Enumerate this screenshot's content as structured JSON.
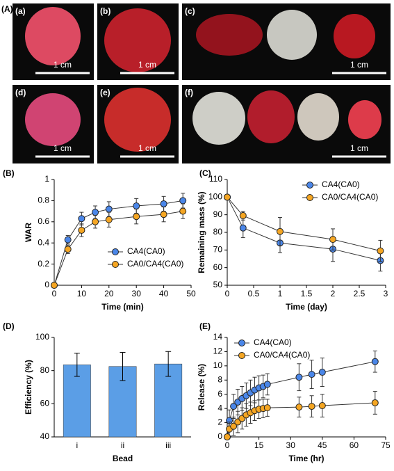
{
  "photos": {
    "label": "(A)",
    "panels": [
      {
        "label": "(a)",
        "scale": "1 cm"
      },
      {
        "label": "(b)",
        "scale": "1 cm"
      },
      {
        "label": "(c)",
        "scale": "1 cm"
      },
      {
        "label": "(d)",
        "scale": "1 cm"
      },
      {
        "label": "(e)",
        "scale": "1 cm"
      },
      {
        "label": "(f)",
        "scale": "1 cm"
      }
    ]
  },
  "chart_data": [
    {
      "type": "line",
      "panel_label": "(B)",
      "x_label": "Time (min)",
      "y_label": "WAR",
      "x": [
        0,
        5,
        10,
        15,
        20,
        30,
        40,
        47
      ],
      "series": [
        {
          "name": "CA4(CA0)",
          "color": "#4a86e8",
          "values": [
            0,
            0.43,
            0.63,
            0.69,
            0.72,
            0.75,
            0.77,
            0.8
          ],
          "errors": [
            0,
            0.04,
            0.06,
            0.06,
            0.07,
            0.07,
            0.07,
            0.07
          ]
        },
        {
          "name": "CA0/CA4(CA0)",
          "color": "#f5a623",
          "values": [
            0,
            0.34,
            0.52,
            0.6,
            0.62,
            0.65,
            0.67,
            0.7
          ],
          "errors": [
            0,
            0.04,
            0.06,
            0.06,
            0.07,
            0.07,
            0.07,
            0.07
          ]
        }
      ],
      "xlim": [
        0,
        50
      ],
      "xticks": [
        0,
        10,
        20,
        30,
        40,
        50
      ],
      "ylim": [
        0,
        1
      ],
      "yticks": [
        0,
        0.2,
        0.4,
        0.6,
        0.8,
        1
      ],
      "legend": "lower right"
    },
    {
      "type": "line",
      "panel_label": "(C)",
      "x_label": "Time (day)",
      "y_label": "Remaining mass (%)",
      "x": [
        0,
        0.3,
        1,
        2,
        2.9
      ],
      "series": [
        {
          "name": "CA4(CA0)",
          "color": "#4a86e8",
          "values": [
            100,
            82.5,
            74,
            70.5,
            64
          ],
          "errors": [
            0,
            5.5,
            5.5,
            7,
            6
          ]
        },
        {
          "name": "CA0/CA4(CA0)",
          "color": "#f5a623",
          "values": [
            100,
            89.5,
            80.5,
            76,
            69.5
          ],
          "errors": [
            0,
            2.5,
            8,
            6,
            6
          ]
        }
      ],
      "xlim": [
        0,
        3
      ],
      "xticks": [
        0,
        0.5,
        1,
        1.5,
        2,
        2.5,
        3
      ],
      "ylim": [
        50,
        110
      ],
      "yticks": [
        50,
        60,
        70,
        80,
        90,
        100,
        110
      ],
      "legend": "upper right"
    },
    {
      "type": "bar",
      "panel_label": "(D)",
      "x_label": "Bead",
      "y_label": "Efficiency (%)",
      "categories": [
        "i",
        "ii",
        "iii"
      ],
      "values": [
        83.5,
        82.5,
        84
      ],
      "errors": [
        7,
        8.5,
        7.5
      ],
      "color": "#5b9ee6",
      "ylim": [
        40,
        100
      ],
      "yticks": [
        40,
        60,
        80,
        100
      ]
    },
    {
      "type": "line",
      "panel_label": "(E)",
      "x_label": "Time (hr)",
      "y_label": "Release (%)",
      "x": [
        0,
        1,
        3,
        5,
        7,
        9,
        11,
        13,
        15,
        17,
        19,
        34,
        40,
        45,
        70
      ],
      "series": [
        {
          "name": "CA4(CA0)",
          "color": "#4a86e8",
          "values": [
            0,
            2.3,
            4.3,
            4.9,
            5.4,
            5.8,
            6.2,
            6.6,
            6.9,
            7.1,
            7.4,
            8.4,
            8.8,
            9.1,
            10.6
          ],
          "errors": [
            0,
            1.5,
            1.7,
            1.8,
            1.7,
            1.8,
            1.8,
            1.8,
            1.7,
            1.6,
            1.5,
            1.9,
            2,
            2,
            1.5
          ]
        },
        {
          "name": "CA0/CA4(CA0)",
          "color": "#f5a623",
          "values": [
            0,
            1.1,
            1.5,
            2.1,
            2.6,
            3.1,
            3.4,
            3.7,
            3.9,
            4,
            4.1,
            4.2,
            4.3,
            4.4,
            4.8
          ],
          "errors": [
            0,
            1,
            1.3,
            1.5,
            1.5,
            1.6,
            1.5,
            1.4,
            1.3,
            1.3,
            1.2,
            1.4,
            1.5,
            1.6,
            1.6
          ]
        }
      ],
      "xlim": [
        0,
        75
      ],
      "xticks": [
        0,
        15,
        30,
        45,
        60,
        75
      ],
      "ylim": [
        0,
        14
      ],
      "yticks": [
        0,
        2,
        4,
        6,
        8,
        10,
        12,
        14
      ],
      "legend": "upper left"
    }
  ]
}
